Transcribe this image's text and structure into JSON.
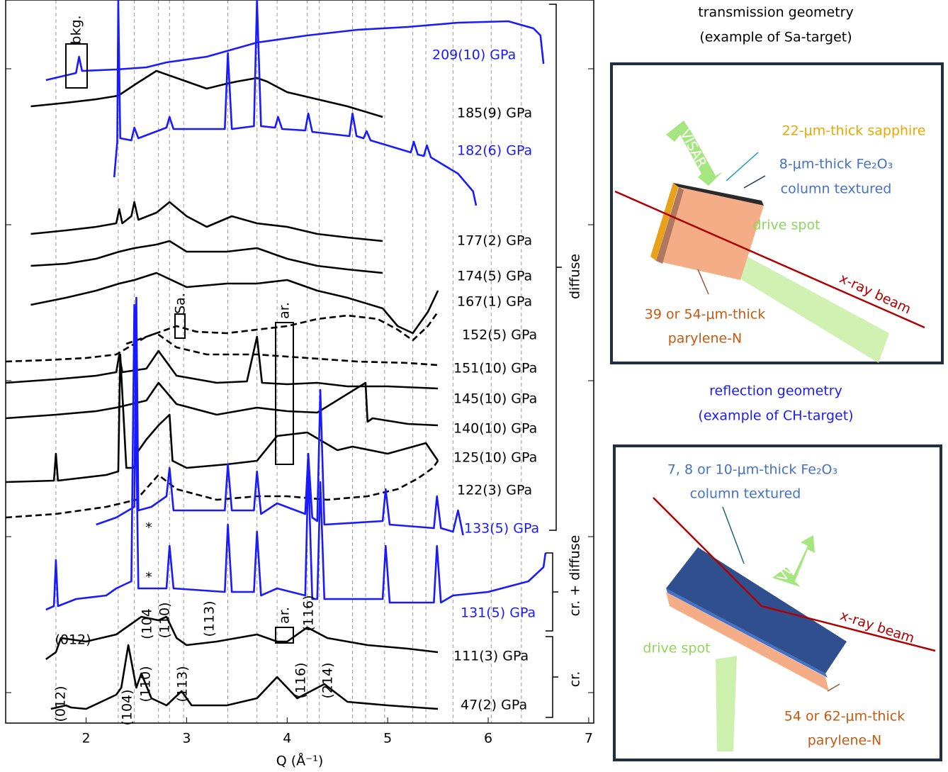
{
  "chart_data": {
    "type": "line",
    "xlabel": "Q (Å⁻¹)",
    "xlim": [
      1.2,
      7.05
    ],
    "xticks": [
      2,
      3,
      4,
      5,
      6,
      7
    ],
    "ylim": [
      0,
      1020
    ],
    "yticks": [
      43,
      263,
      483,
      703,
      923
    ],
    "ref_lines": [
      1.7,
      2.32,
      2.48,
      2.72,
      2.83,
      2.97,
      3.41,
      3.7,
      3.9,
      4.2,
      4.32,
      4.65,
      4.78,
      4.97,
      5.25,
      5.38,
      5.65,
      6.03,
      6.33
    ],
    "series": [
      {
        "name": "209(10) GPa",
        "color": "#1a1aff",
        "dashed": false,
        "x": [
          1.6,
          1.9,
          1.93,
          1.96,
          2.3,
          2.6,
          2.8,
          3.2,
          3.7,
          4.2,
          4.7,
          5.2,
          5.7,
          6.2,
          6.45,
          6.52,
          6.55
        ],
        "values": [
          907,
          917,
          940,
          920,
          922,
          925,
          932,
          940,
          960,
          970,
          978,
          982,
          988,
          990,
          980,
          970,
          930
        ]
      },
      {
        "name": "185(9) GPa",
        "color": "#000000",
        "dashed": false,
        "x": [
          1.45,
          1.8,
          2.1,
          2.32,
          2.5,
          2.7,
          2.9,
          3.2,
          3.4,
          3.5,
          3.7,
          3.8,
          4.0,
          4.3,
          4.6,
          4.95
        ],
        "values": [
          870,
          875,
          880,
          885,
          902,
          920,
          910,
          895,
          902,
          905,
          910,
          905,
          890,
          880,
          870,
          855
        ]
      },
      {
        "name": "182(6) GPa",
        "color": "#1a1aff",
        "dashed": false,
        "x": [
          2.28,
          2.31,
          2.32,
          2.34,
          2.45,
          2.48,
          2.52,
          2.8,
          2.83,
          2.87,
          3.38,
          3.41,
          3.45,
          3.67,
          3.7,
          3.74,
          3.88,
          3.91,
          3.95,
          4.18,
          4.21,
          4.25,
          4.62,
          4.65,
          4.69,
          4.76,
          4.79,
          4.83,
          5.23,
          5.26,
          5.3,
          5.36,
          5.39,
          5.43,
          5.7,
          5.85,
          5.88
        ],
        "values": [
          770,
          820,
          1020,
          825,
          822,
          840,
          825,
          840,
          855,
          838,
          838,
          945,
          838,
          842,
          1020,
          842,
          840,
          855,
          838,
          836,
          860,
          834,
          828,
          860,
          828,
          825,
          835,
          822,
          805,
          820,
          802,
          800,
          815,
          798,
          775,
          750,
          730
        ]
      },
      {
        "name": "177(2) GPa",
        "color": "#000000",
        "dashed": false,
        "x": [
          1.45,
          1.8,
          2.1,
          2.3,
          2.33,
          2.36,
          2.45,
          2.48,
          2.52,
          2.7,
          2.83,
          3.0,
          3.2,
          3.45,
          3.7,
          4.0,
          4.3,
          4.6,
          4.95
        ],
        "values": [
          690,
          695,
          700,
          705,
          725,
          705,
          715,
          735,
          710,
          720,
          735,
          715,
          700,
          715,
          705,
          700,
          690,
          685,
          680
        ]
      },
      {
        "name": "174(5) GPa",
        "color": "#000000",
        "dashed": false,
        "x": [
          1.45,
          1.8,
          2.1,
          2.33,
          2.48,
          2.7,
          2.83,
          3.0,
          3.4,
          3.7,
          4.0,
          4.3,
          4.6,
          4.95
        ],
        "values": [
          645,
          648,
          655,
          665,
          670,
          675,
          680,
          665,
          665,
          670,
          655,
          645,
          640,
          635
        ]
      },
      {
        "name": "167(1) GPa",
        "color": "#000000",
        "dashed": false,
        "x": [
          1.45,
          1.8,
          2.1,
          2.33,
          2.48,
          2.7,
          3.0,
          3.4,
          3.7,
          4.0,
          4.3,
          4.6,
          4.95,
          5.1,
          5.25,
          5.4,
          5.5
        ],
        "values": [
          590,
          600,
          610,
          620,
          625,
          635,
          615,
          620,
          620,
          625,
          610,
          600,
          585,
          560,
          550,
          580,
          610
        ]
      },
      {
        "name": "152(5) GPa",
        "color": "#000000",
        "dashed": true,
        "x": [
          2.4,
          2.7,
          2.9,
          3.1,
          3.4,
          3.7,
          4.0,
          4.3,
          4.6,
          4.9,
          5.1,
          5.25,
          5.4,
          5.5
        ],
        "values": [
          535,
          550,
          560,
          552,
          550,
          555,
          560,
          570,
          575,
          570,
          555,
          540,
          560,
          580
        ]
      },
      {
        "name": "151(10) GPa",
        "color": "#000000",
        "dashed": true,
        "x": [
          1.2,
          1.6,
          2.0,
          2.3,
          2.6,
          2.7,
          2.9,
          3.2,
          3.7,
          4.2,
          4.7,
          5.2,
          5.5
        ],
        "values": [
          510,
          512,
          515,
          520,
          545,
          550,
          530,
          520,
          520,
          515,
          510,
          508,
          505
        ]
      },
      {
        "name": "145(10) GPa",
        "color": "#000000",
        "dashed": false,
        "x": [
          1.2,
          1.7,
          2.1,
          2.3,
          2.33,
          2.36,
          2.6,
          2.72,
          2.9,
          3.3,
          3.6,
          3.7,
          3.75,
          4.0,
          4.3,
          4.6,
          5.0,
          5.5
        ],
        "values": [
          480,
          485,
          490,
          495,
          520,
          495,
          500,
          525,
          490,
          480,
          482,
          545,
          480,
          478,
          480,
          475,
          475,
          472
        ]
      },
      {
        "name": "140(10) GPa",
        "color": "#000000",
        "dashed": false,
        "x": [
          1.2,
          1.7,
          2.1,
          2.3,
          2.6,
          2.72,
          2.9,
          3.3,
          3.7,
          4.0,
          4.3,
          4.78,
          4.8,
          4.85,
          5.2,
          5.5
        ],
        "values": [
          430,
          435,
          440,
          445,
          455,
          480,
          450,
          435,
          445,
          440,
          438,
          480,
          425,
          430,
          422,
          420
        ]
      },
      {
        "name": "125(10) GPa",
        "color": "#000000",
        "dashed": false,
        "x": [
          1.2,
          1.68,
          1.7,
          1.72,
          2.2,
          2.32,
          2.34,
          2.4,
          2.48,
          2.5,
          2.6,
          2.72,
          2.83,
          2.86,
          3.0,
          3.4,
          3.7,
          3.9,
          4.2,
          4.5,
          4.65,
          5.0,
          5.38,
          5.5
        ],
        "values": [
          340,
          342,
          380,
          342,
          350,
          355,
          520,
          360,
          360,
          380,
          400,
          420,
          435,
          370,
          360,
          365,
          370,
          405,
          410,
          385,
          390,
          380,
          395,
          370
        ]
      },
      {
        "name": "122(3) GPa",
        "color": "#000000",
        "dashed": true,
        "x": [
          1.2,
          1.7,
          2.2,
          2.5,
          2.72,
          2.9,
          3.3,
          3.7,
          4.0,
          4.4,
          4.8,
          5.1,
          5.3,
          5.45,
          5.5
        ],
        "values": [
          290,
          295,
          305,
          315,
          350,
          330,
          315,
          320,
          320,
          315,
          320,
          330,
          345,
          360,
          370
        ]
      },
      {
        "name": "133(5) GPa",
        "color": "#1a1aff",
        "dashed": false,
        "x": [
          2.1,
          2.3,
          2.48,
          2.5,
          2.52,
          2.65,
          2.8,
          2.83,
          2.87,
          3.38,
          3.41,
          3.45,
          3.67,
          3.7,
          3.74,
          3.9,
          4.18,
          4.21,
          4.25,
          4.3,
          4.33,
          4.37,
          4.95,
          4.98,
          5.02,
          5.46,
          5.49,
          5.53,
          5.65,
          5.7,
          5.75
        ],
        "values": [
          280,
          290,
          305,
          600,
          300,
          305,
          320,
          360,
          300,
          300,
          365,
          300,
          300,
          355,
          295,
          310,
          295,
          380,
          290,
          285,
          470,
          280,
          285,
          330,
          280,
          275,
          320,
          275,
          270,
          300,
          265
        ]
      },
      {
        "name": "131(5) GPa",
        "color": "#1a1aff",
        "dashed": false,
        "x": [
          1.6,
          1.68,
          1.7,
          1.72,
          1.9,
          2.2,
          2.3,
          2.45,
          2.48,
          2.52,
          2.8,
          2.83,
          2.87,
          3.38,
          3.41,
          3.45,
          3.67,
          3.7,
          3.74,
          3.9,
          4.18,
          4.21,
          4.25,
          4.3,
          4.33,
          4.37,
          4.95,
          4.98,
          5.02,
          5.46,
          5.49,
          5.53,
          5.65,
          6.0,
          6.4,
          6.55,
          6.57
        ],
        "values": [
          160,
          165,
          230,
          165,
          175,
          180,
          190,
          200,
          590,
          190,
          190,
          250,
          190,
          185,
          280,
          185,
          185,
          270,
          180,
          190,
          180,
          360,
          175,
          175,
          340,
          175,
          175,
          250,
          170,
          170,
          250,
          170,
          180,
          185,
          200,
          220,
          240
        ]
      },
      {
        "name": "111(3) GPa",
        "color": "#000000",
        "dashed": false,
        "x": [
          1.6,
          1.7,
          1.75,
          2.0,
          2.3,
          2.45,
          2.55,
          2.72,
          2.8,
          2.9,
          3.0,
          3.3,
          3.7,
          3.9,
          4.0,
          4.2,
          4.4,
          4.8,
          5.2,
          5.5
        ],
        "values": [
          90,
          100,
          120,
          115,
          125,
          140,
          150,
          145,
          150,
          120,
          110,
          115,
          125,
          115,
          115,
          135,
          120,
          110,
          105,
          100
        ]
      },
      {
        "name": "47(2) GPa",
        "color": "#000000",
        "dashed": false,
        "x": [
          1.65,
          1.8,
          1.85,
          2.0,
          2.3,
          2.35,
          2.42,
          2.5,
          2.55,
          2.65,
          2.8,
          2.95,
          3.05,
          3.4,
          3.7,
          3.9,
          4.1,
          4.37,
          4.6,
          5.0,
          5.5
        ],
        "values": [
          20,
          25,
          22,
          20,
          40,
          50,
          110,
          50,
          70,
          35,
          25,
          45,
          25,
          25,
          35,
          65,
          35,
          55,
          30,
          25,
          20
        ]
      }
    ],
    "groups": [
      "diffuse",
      "cr. + diffuse",
      "cr."
    ],
    "annotations": [
      "bkg.",
      "Sa.",
      "ar.",
      "ar.",
      "*",
      "*",
      "(104",
      "(110)",
      "(113)",
      "(116)",
      "(012)",
      "(012)",
      "(104)",
      "(110)",
      "(113)",
      "(116)",
      "(214)"
    ]
  },
  "transmission": {
    "title": "transmission geometry",
    "subtitle": "(example of Sa-target)",
    "sapphire": "22-μm-thick sapphire",
    "fe2o3": "8-μm-thick Fe₂O₃",
    "texture": "column textured",
    "drive": "drive spot",
    "parylene": "39 or 54-μm-thick",
    "parylene2": "parylene-N",
    "xray": "x-ray beam",
    "visar": "VISAR"
  },
  "reflection": {
    "title": "reflection geometry",
    "subtitle": "(example of CH-target)",
    "fe2o3": "7, 8 or 10-μm-thick Fe₂O₃",
    "texture": "column textured",
    "xray": "x-ray beam",
    "drive": "drive spot",
    "parylene": "54 or 62-μm-thick",
    "parylene2": "parylene-N",
    "visar": "VISAR"
  }
}
